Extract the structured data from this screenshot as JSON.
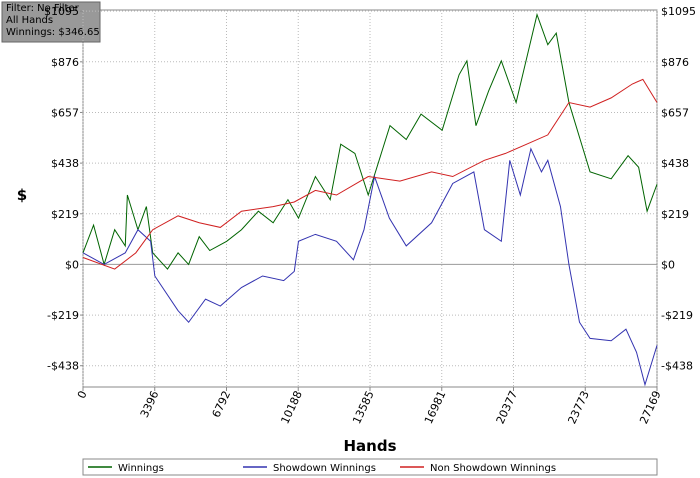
{
  "chart_data": {
    "type": "line",
    "annotations": [
      "Filter: No Filter",
      "All Hands",
      "Winnings: $346.65"
    ],
    "x_label": "Hands",
    "y_label": "$",
    "xlim": [
      0,
      27169
    ],
    "xticks": [
      0,
      3396,
      6792,
      10188,
      13585,
      16981,
      20377,
      23773,
      27169
    ],
    "ylim": [
      -530,
      1100
    ],
    "yticks": [
      {
        "value": -438,
        "label": "-$438"
      },
      {
        "value": -219,
        "label": "-$219"
      },
      {
        "value": 0,
        "label": "$0"
      },
      {
        "value": 219,
        "label": "$219"
      },
      {
        "value": 438,
        "label": "$438"
      },
      {
        "value": 657,
        "label": "$657"
      },
      {
        "value": 876,
        "label": "$876"
      },
      {
        "value": 1095,
        "label": "$1095"
      }
    ],
    "grid": true,
    "legend": "bottom",
    "series": [
      {
        "name": "Winnings",
        "color": "#006400",
        "x": [
          0,
          500,
          1000,
          1500,
          2000,
          2100,
          2600,
          3000,
          3300,
          4000,
          4500,
          5000,
          5500,
          6000,
          6800,
          7500,
          8300,
          9000,
          9700,
          10200,
          11000,
          11700,
          12200,
          12870,
          13500,
          14530,
          15300,
          16000,
          17000,
          17800,
          18170,
          18600,
          19200,
          19800,
          20500,
          21490,
          22000,
          22400,
          23000,
          23500,
          24000,
          25000,
          25800,
          26300,
          26700,
          27169
        ],
        "values": [
          50,
          170,
          0,
          150,
          80,
          300,
          150,
          250,
          50,
          -20,
          50,
          0,
          120,
          60,
          100,
          150,
          230,
          180,
          280,
          200,
          380,
          280,
          520,
          480,
          300,
          600,
          540,
          650,
          580,
          820,
          880,
          600,
          750,
          880,
          700,
          1080,
          950,
          1000,
          700,
          550,
          400,
          370,
          470,
          420,
          230,
          346.65
        ]
      },
      {
        "name": "Showdown Winnings",
        "color": "#3333b0",
        "x": [
          0,
          1000,
          2000,
          2600,
          3200,
          3400,
          4500,
          5000,
          5800,
          6500,
          7500,
          8500,
          9500,
          10000,
          10200,
          11000,
          12000,
          12800,
          13300,
          13800,
          14500,
          15300,
          16500,
          17500,
          18500,
          19000,
          19800,
          20200,
          20700,
          21200,
          21700,
          22000,
          22600,
          23000,
          23500,
          24000,
          25000,
          25700,
          26200,
          26600,
          27169
        ],
        "values": [
          50,
          0,
          50,
          150,
          100,
          -50,
          -200,
          -250,
          -150,
          -180,
          -100,
          -50,
          -70,
          -30,
          100,
          130,
          100,
          20,
          150,
          380,
          200,
          80,
          180,
          350,
          400,
          150,
          100,
          450,
          300,
          500,
          400,
          450,
          250,
          0,
          -250,
          -320,
          -330,
          -280,
          -380,
          -520,
          -350
        ]
      },
      {
        "name": "Non Showdown Winnings",
        "color": "#d02020",
        "x": [
          0,
          1500,
          2500,
          3300,
          4500,
          5500,
          6500,
          7500,
          9000,
          10000,
          11000,
          12000,
          13500,
          15000,
          16500,
          17500,
          19000,
          20000,
          21000,
          22000,
          23000,
          24000,
          25000,
          26000,
          26500,
          27169
        ],
        "values": [
          30,
          -20,
          50,
          150,
          210,
          180,
          160,
          230,
          250,
          270,
          320,
          300,
          380,
          360,
          400,
          380,
          450,
          480,
          520,
          560,
          700,
          680,
          720,
          780,
          800,
          700
        ]
      }
    ]
  }
}
